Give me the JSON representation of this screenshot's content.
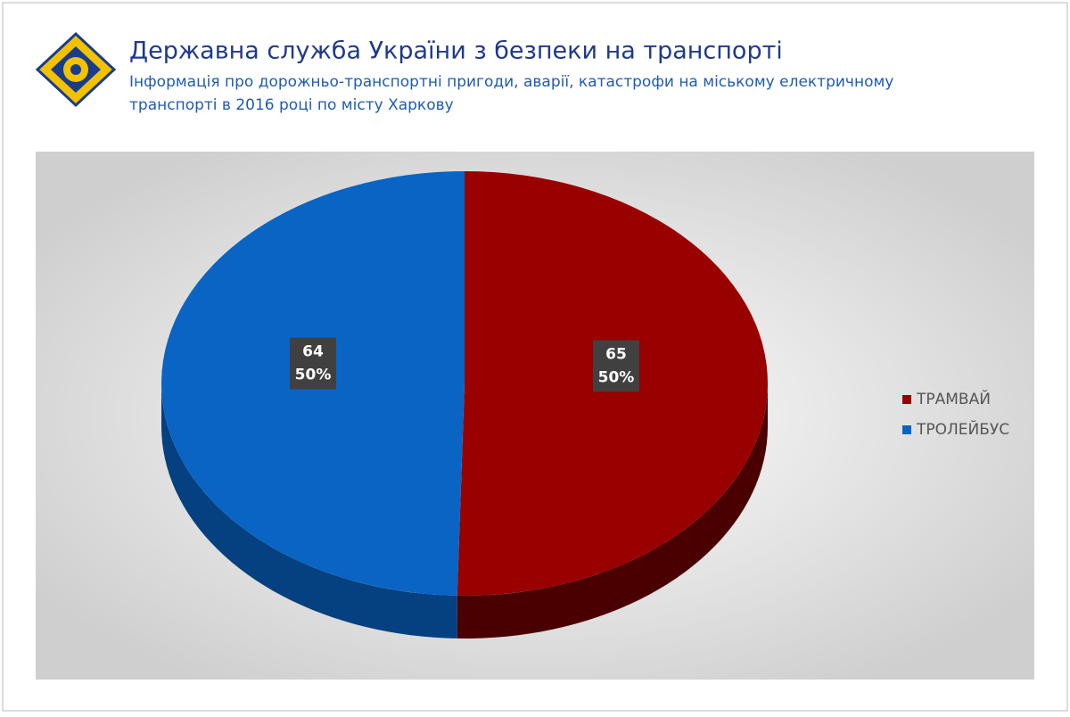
{
  "header": {
    "title": "Державна служба України з безпеки на транспорті"
  },
  "chart_data": {
    "type": "pie3d",
    "subtitle": [
      "Інформація про дорожньо-транспортні пригоди, аварії, катастрофи на міському електричному",
      "транспорті в 2016 році по місту Харкову"
    ],
    "categories": [
      "ТРАМВАЙ",
      "ТРОЛЕЙБУС"
    ],
    "values": [
      65,
      64
    ],
    "percents": [
      50,
      50
    ],
    "percent_labels": [
      "50%",
      "50%"
    ],
    "colors": [
      "#990000",
      "#0a64c4"
    ],
    "side_colors": [
      "#4a0000",
      "#054080"
    ],
    "legend": "right"
  }
}
